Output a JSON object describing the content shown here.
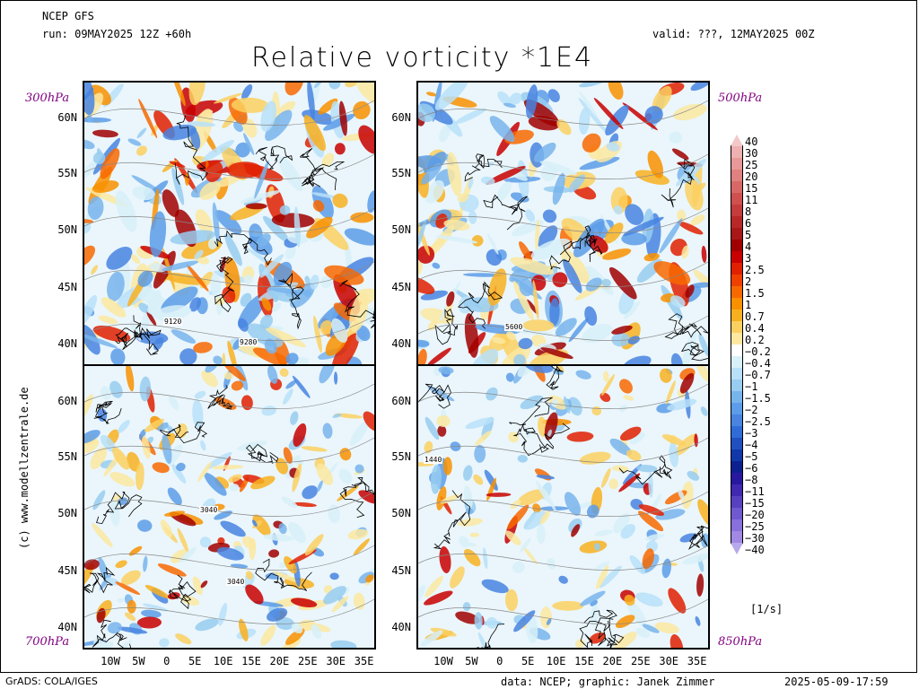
{
  "header": {
    "model": "NCEP GFS",
    "run": "run: 09MAY2025 12Z +60h",
    "valid": "valid: ???, 12MAY2025 00Z",
    "title": "Relative vorticity *1E4"
  },
  "panels": [
    {
      "level": "300hPa",
      "contour_labels": [
        "9120",
        "9280"
      ]
    },
    {
      "level": "500hPa",
      "contour_labels": [
        "5600"
      ]
    },
    {
      "level": "700hPa",
      "contour_labels": [
        "3040",
        "3040"
      ]
    },
    {
      "level": "850hPa",
      "contour_labels": [
        "1440"
      ]
    }
  ],
  "lat_labels": [
    "60N",
    "55N",
    "50N",
    "45N",
    "40N"
  ],
  "lon_labels": [
    "10W",
    "5W",
    "0",
    "5E",
    "10E",
    "15E",
    "20E",
    "25E",
    "30E",
    "35E"
  ],
  "colorbar": {
    "labels": [
      "40",
      "30",
      "25",
      "20",
      "15",
      "11",
      "8",
      "6",
      "5",
      "4",
      "3",
      "2.5",
      "2",
      "1.5",
      "1",
      "0.7",
      "0.4",
      "0.2",
      "−0.2",
      "−0.4",
      "−0.7",
      "−1",
      "−1.5",
      "−2",
      "−2.5",
      "−3",
      "−4",
      "−5",
      "−6",
      "−8",
      "−11",
      "−15",
      "−20",
      "−25",
      "−30",
      "−40"
    ],
    "colors": [
      "#f4c8c8",
      "#eeb0b0",
      "#e89898",
      "#e08080",
      "#d86868",
      "#d05050",
      "#c43c3c",
      "#b82828",
      "#a81818",
      "#a00000",
      "#c80000",
      "#e02000",
      "#f04000",
      "#f86800",
      "#f89000",
      "#f8b020",
      "#fcd060",
      "#fce8a0",
      "#ffffff",
      "#d8f0f8",
      "#b8e0f8",
      "#98ccf0",
      "#78b4ec",
      "#5c9ce8",
      "#4884e0",
      "#306cd8",
      "#2050c0",
      "#1038a8",
      "#0c2090",
      "#2818a0",
      "#4028b0",
      "#5840c0",
      "#7058d0",
      "#8870dc",
      "#a088e4",
      "#b8a8ec"
    ],
    "unit": "[1/s]"
  },
  "credits": {
    "side": "(c) www.modellzentrale.de",
    "grads": "GrADS: COLA/IGES",
    "data": "data: NCEP; graphic: Janek Zimmer",
    "timestamp": "2025-05-09-17:59"
  }
}
